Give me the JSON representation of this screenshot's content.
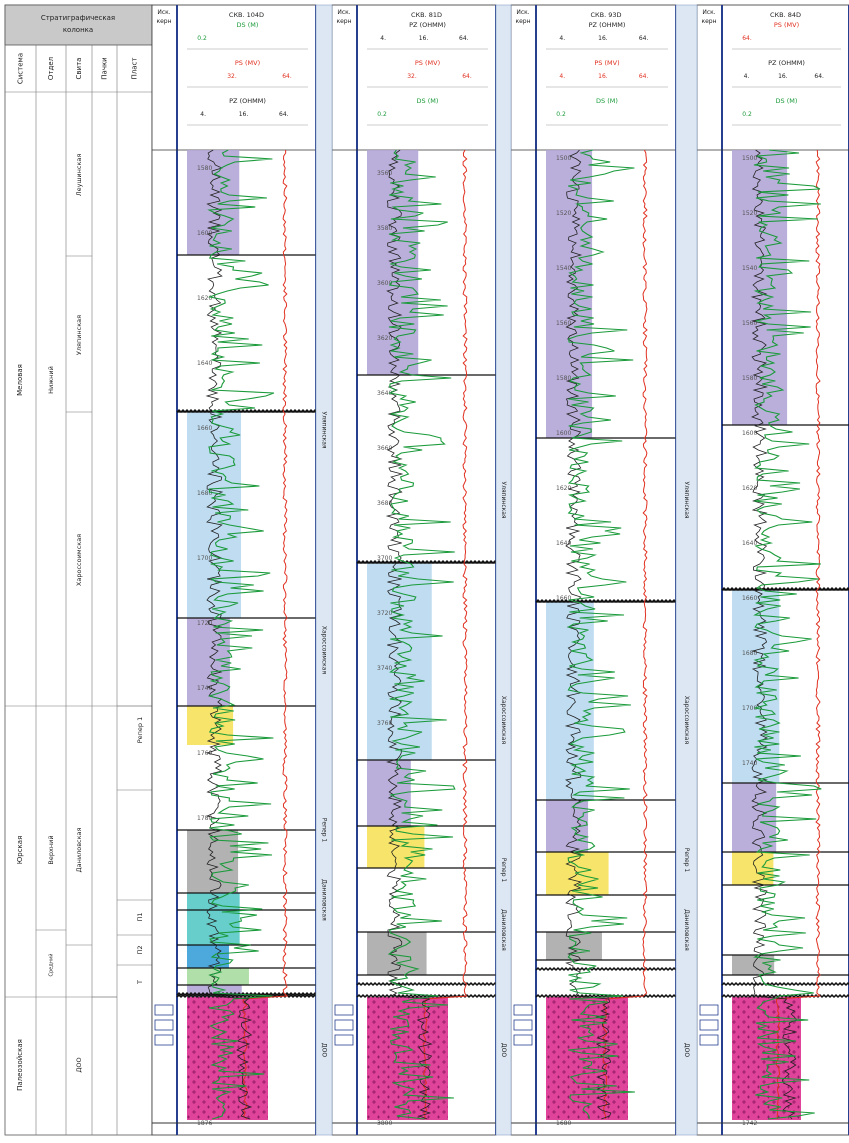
{
  "strat": {
    "title": "Стратиграфическая колонка",
    "headers": [
      "Система",
      "Отдел",
      "Свита",
      "Пачки",
      "Пласт"
    ],
    "systems": [
      "Меловая",
      "Юрская",
      "Палеозойская"
    ],
    "divisions": [
      "Нижний",
      "Верхний",
      "Средний"
    ],
    "suites": [
      "Леушинская",
      "Уляпинская",
      "Хароссоимская",
      "Даниловская",
      "ДОО"
    ],
    "packs": [],
    "plasts": [
      "Репер 1",
      "П1",
      "П2",
      "Т"
    ]
  },
  "core_label": "Иск. керн",
  "wells": [
    {
      "name": "СКВ. 104D",
      "curves": [
        {
          "label": "DS (M)",
          "color": "#1a9a3a",
          "ticks": [
            "0.2"
          ]
        },
        {
          "label": "PS (MV)",
          "color": "#e03020",
          "ticks": [
            "32.",
            "64."
          ]
        },
        {
          "label": "PZ (OHMM)",
          "color": "#222222",
          "ticks": [
            "4.",
            "16.",
            "64."
          ]
        }
      ],
      "depths": [
        "1580",
        "1600",
        "1620",
        "1640",
        "1660",
        "1680",
        "1700",
        "1720",
        "1740",
        "1760",
        "1780",
        "1876"
      ]
    },
    {
      "name": "СКВ. 81D",
      "curves": [
        {
          "label": "PZ (OHMM)",
          "color": "#222222",
          "ticks": [
            "4.",
            "16.",
            "64."
          ]
        },
        {
          "label": "PS (MV)",
          "color": "#e03020",
          "ticks": [
            "32.",
            "64."
          ]
        },
        {
          "label": "DS (M)",
          "color": "#1a9a3a",
          "ticks": [
            "0.2"
          ]
        }
      ],
      "depths": [
        "3560",
        "3580",
        "3600",
        "3620",
        "3640",
        "3660",
        "3680",
        "3700",
        "3720",
        "3740",
        "3760",
        "3800"
      ]
    },
    {
      "name": "СКВ. 93D",
      "curves": [
        {
          "label": "PZ (OHMM)",
          "color": "#222222",
          "ticks": [
            "4.",
            "16.",
            "64."
          ]
        },
        {
          "label": "PS (MV)",
          "color": "#e03020",
          "ticks": [
            "4.",
            "16.",
            "64."
          ]
        },
        {
          "label": "DS (M)",
          "color": "#1a9a3a",
          "ticks": [
            "0.2"
          ]
        }
      ],
      "depths": [
        "1500",
        "1520",
        "1540",
        "1560",
        "1580",
        "1600",
        "1620",
        "1640",
        "1660",
        "1680"
      ]
    },
    {
      "name": "СКВ. 84D",
      "curves": [
        {
          "label": "PS (MV)",
          "color": "#e03020",
          "ticks": [
            "64."
          ]
        },
        {
          "label": "PZ (OHMM)",
          "color": "#222222",
          "ticks": [
            "4.",
            "16.",
            "64."
          ]
        },
        {
          "label": "DS (M)",
          "color": "#1a9a3a",
          "ticks": [
            "0.2"
          ]
        }
      ],
      "depths": [
        "1500",
        "1520",
        "1540",
        "1560",
        "1580",
        "1600",
        "1620",
        "1640",
        "1660",
        "1680",
        "1700",
        "1740",
        "1742"
      ]
    }
  ],
  "correlation_labels": [
    [
      "Уляпинская",
      "Хароссоимская",
      "Репер 1",
      "Даниловская",
      "ДОО"
    ],
    [
      "Уляпинская",
      "Хароссоимская",
      "Репер 1",
      "Даниловская",
      "ДОО"
    ],
    [
      "Уляпинская",
      "Хароссоимская",
      "Репер 1",
      "Даниловская",
      "ДОО"
    ]
  ],
  "colors": {
    "purple": "#b3a6d6",
    "blue": "#b8d8f0",
    "yellow": "#f5e25a",
    "gray": "#aaaaaa",
    "magenta": "#e0449a",
    "teal": "#57c9c6",
    "lightgreen": "#a8dba0",
    "cyan": "#3aa0d8",
    "green": "#1a9a3a",
    "red": "#e03020",
    "dark": "#222222",
    "band": "#dde7f3",
    "frame": "#26408f"
  }
}
